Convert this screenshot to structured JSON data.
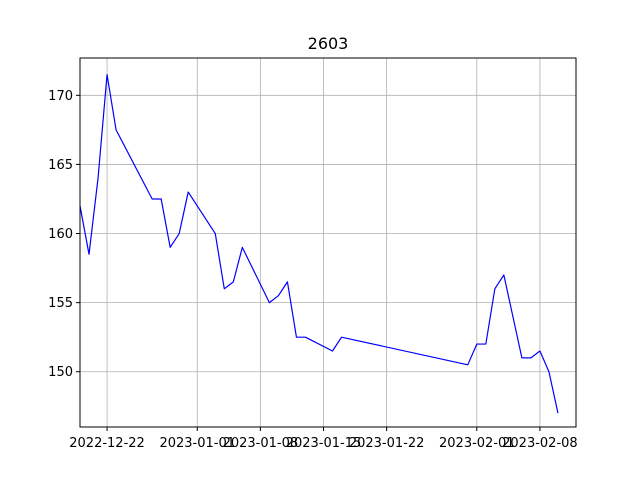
{
  "chart_data": {
    "type": "line",
    "title": "2603",
    "xlabel": "",
    "ylabel": "",
    "grid": true,
    "line_color": "#0000ff",
    "x_ticks": [
      "2022-12-22",
      "2023-01-01",
      "2023-01-08",
      "2023-01-15",
      "2023-01-22",
      "2023-02-01",
      "2023-02-08"
    ],
    "y_ticks": [
      150,
      155,
      160,
      165,
      170
    ],
    "xlim": [
      "2022-12-19",
      "2023-02-12"
    ],
    "ylim": [
      146,
      172.7
    ],
    "series": [
      {
        "x": [
          "2022-12-19",
          "2022-12-20",
          "2022-12-21",
          "2022-12-22",
          "2022-12-23",
          "2022-12-27",
          "2022-12-28",
          "2022-12-29",
          "2022-12-30",
          "2022-12-31",
          "2023-01-03",
          "2023-01-04",
          "2023-01-05",
          "2023-01-06",
          "2023-01-09",
          "2023-01-10",
          "2023-01-11",
          "2023-01-12",
          "2023-01-13",
          "2023-01-16",
          "2023-01-17",
          "2023-01-31",
          "2023-02-01",
          "2023-02-02",
          "2023-02-03",
          "2023-02-04",
          "2023-02-06",
          "2023-02-07",
          "2023-02-08",
          "2023-02-09",
          "2023-02-10"
        ],
        "y": [
          162.0,
          158.5,
          164.0,
          171.5,
          167.5,
          162.5,
          162.5,
          159.0,
          160.0,
          163.0,
          160.0,
          156.0,
          156.5,
          159.0,
          155.0,
          155.5,
          156.5,
          152.5,
          152.5,
          151.5,
          152.5,
          150.5,
          152.0,
          152.0,
          156.0,
          157.0,
          151.0,
          151.0,
          151.5,
          150.0,
          147.0
        ]
      }
    ]
  }
}
